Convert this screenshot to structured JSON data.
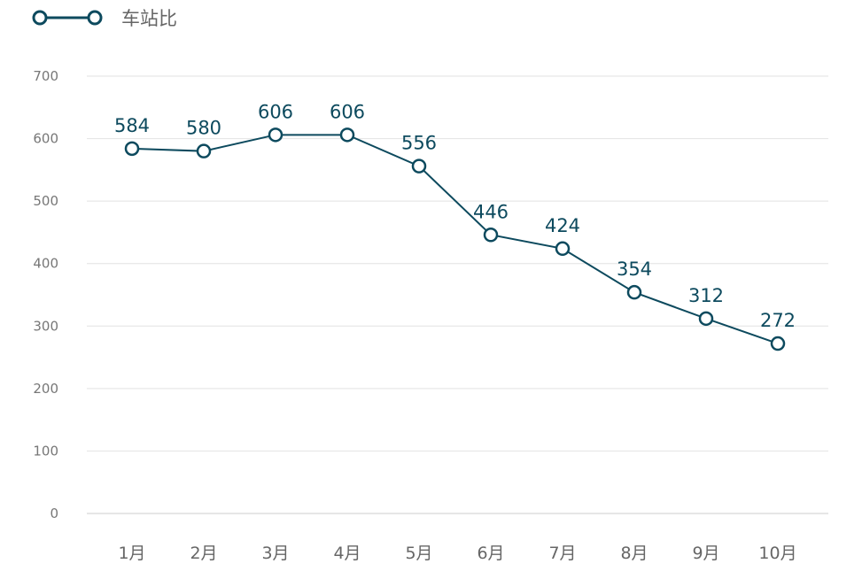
{
  "chart_data": {
    "type": "line",
    "title": "",
    "xlabel": "",
    "ylabel": "",
    "categories": [
      "1月",
      "2月",
      "3月",
      "4月",
      "5月",
      "6月",
      "7月",
      "8月",
      "9月",
      "10月"
    ],
    "series": [
      {
        "name": "车站比",
        "values": [
          584,
          580,
          606,
          606,
          556,
          446,
          424,
          354,
          312,
          272
        ],
        "color": "#0d4a5e"
      }
    ],
    "ylim": [
      0,
      700
    ],
    "yticks": [
      0,
      100,
      200,
      300,
      400,
      500,
      600,
      700
    ],
    "grid": true,
    "legend": "top-left",
    "data_labels": true
  }
}
